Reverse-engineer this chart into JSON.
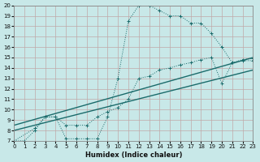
{
  "xlabel": "Humidex (Indice chaleur)",
  "bg_color": "#c8e8e8",
  "grid_color": "#b0cece",
  "line_color": "#1a6b6b",
  "xlim": [
    0,
    23
  ],
  "ylim": [
    7,
    20
  ],
  "xticks": [
    0,
    1,
    2,
    3,
    4,
    5,
    6,
    7,
    8,
    9,
    10,
    11,
    12,
    13,
    14,
    15,
    16,
    17,
    18,
    19,
    20,
    21,
    22,
    23
  ],
  "yticks": [
    7,
    8,
    9,
    10,
    11,
    12,
    13,
    14,
    15,
    16,
    17,
    18,
    19,
    20
  ],
  "curve1_x": [
    0,
    1,
    2,
    3,
    4,
    5,
    6,
    7,
    8,
    9,
    10,
    11,
    12,
    13,
    14,
    15,
    16,
    17,
    18,
    19,
    20,
    21,
    22,
    23
  ],
  "curve1_y": [
    7,
    7,
    8,
    9.3,
    9.3,
    7.2,
    7.2,
    7.2,
    7.2,
    9.3,
    13,
    18.5,
    20,
    20,
    19.5,
    19,
    19,
    18.3,
    18.3,
    17.3,
    16,
    14.5,
    14.7,
    14.7
  ],
  "curve2_x": [
    0,
    2,
    3,
    4,
    5,
    6,
    7,
    8,
    9,
    10,
    11,
    12,
    13,
    14,
    15,
    16,
    17,
    18,
    19,
    20,
    21,
    22,
    23
  ],
  "curve2_y": [
    7,
    8.2,
    9.3,
    9.3,
    8.5,
    8.5,
    8.5,
    9.3,
    9.8,
    10.2,
    11,
    13,
    13.2,
    13.8,
    14,
    14.3,
    14.5,
    14.8,
    15.0,
    12.5,
    14.5,
    14.8,
    14.9
  ],
  "line1_x": [
    0,
    23
  ],
  "line1_y": [
    8.5,
    15.0
  ],
  "line2_x": [
    0,
    23
  ],
  "line2_y": [
    8.0,
    13.8
  ]
}
